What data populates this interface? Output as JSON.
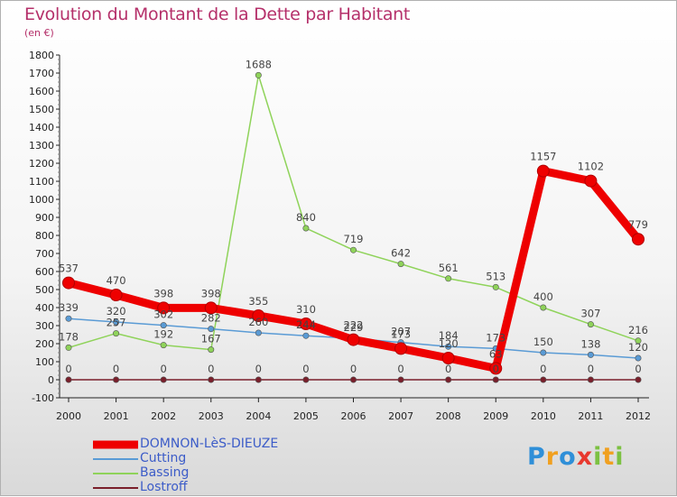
{
  "header": {
    "title": "Evolution du Montant de la Dette par Habitant",
    "unit": "(en €)"
  },
  "chart_data": {
    "type": "line",
    "title": "Evolution du Montant de la Dette par Habitant",
    "ylabel": "(en €)",
    "xlabel": "",
    "x": [
      "2000",
      "2001",
      "2002",
      "2003",
      "2004",
      "2005",
      "2006",
      "2007",
      "2008",
      "2009",
      "2010",
      "2011",
      "2012"
    ],
    "ylim": [
      -100,
      1800
    ],
    "yticks": [
      "-100",
      "0",
      "100",
      "200",
      "300",
      "400",
      "500",
      "600",
      "700",
      "800",
      "900",
      "1000",
      "1100",
      "1200",
      "1300",
      "1400",
      "1500",
      "1600",
      "1700",
      "1800"
    ],
    "legend_position": "bottom-left",
    "series": [
      {
        "name": "Lostroff",
        "color": "#7a1f2b",
        "values": [
          0,
          0,
          0,
          0,
          0,
          0,
          0,
          0,
          0,
          0,
          0,
          0,
          0
        ],
        "labels": [
          "0",
          "0",
          "0",
          "0",
          "0",
          "0",
          "0",
          "0",
          "0",
          "0",
          "0",
          "0",
          "0"
        ]
      },
      {
        "name": "Bassing",
        "color": "#8fd35a",
        "values": [
          178,
          257,
          192,
          167,
          1688,
          840,
          719,
          642,
          561,
          513,
          400,
          307,
          216
        ],
        "labels": [
          "178",
          "257",
          "192",
          "167",
          "1688",
          "840",
          "719",
          "642",
          "561",
          "513",
          "400",
          "307",
          "216"
        ]
      },
      {
        "name": "Cutting",
        "color": "#5a9bd5",
        "values": [
          339,
          320,
          302,
          282,
          260,
          244,
          229,
          207,
          184,
          173,
          150,
          138,
          120
        ],
        "labels": [
          "339",
          "320",
          "302",
          "282",
          "260",
          "244",
          "229",
          "207",
          "184",
          "173",
          "150",
          "138",
          "120"
        ]
      },
      {
        "name": "DOMNON-LèS-DIEUZE",
        "color": "#ee0000",
        "values": [
          537,
          470,
          398,
          398,
          355,
          310,
          222,
          173,
          120,
          63,
          1157,
          1102,
          779
        ],
        "labels": [
          "537",
          "470",
          "398",
          "398",
          "355",
          "310",
          "222",
          "173",
          "120",
          "63",
          "1157",
          "1102",
          "779"
        ]
      }
    ]
  },
  "legend": {
    "items": [
      {
        "name": "DOMNON-LèS-DIEUZE",
        "color": "#ee0000"
      },
      {
        "name": "Cutting",
        "color": "#5a9bd5"
      },
      {
        "name": "Bassing",
        "color": "#8fd35a"
      },
      {
        "name": "Lostroff",
        "color": "#7a1f2b"
      }
    ]
  },
  "brand": {
    "logo": "Proxiti"
  }
}
